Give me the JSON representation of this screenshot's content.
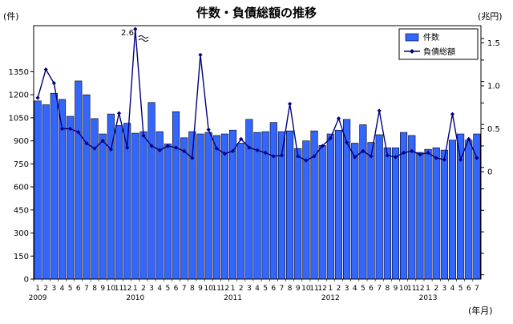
{
  "chart_data": {
    "type": "bar+line",
    "title": "件数・負債総額の推移",
    "left_axis_unit": "(件)",
    "right_axis_unit": "(兆円)",
    "x_axis_unit": "(年月)",
    "left_ylim": [
      0,
      1650
    ],
    "left_ticks": [
      "0",
      "150",
      "300",
      "450",
      "600",
      "750",
      "900",
      "1050",
      "1200",
      "1350"
    ],
    "right_ylim": [
      -1.25,
      1.7
    ],
    "right_ticks": [
      "0",
      "0.5",
      "1.0",
      "1.5"
    ],
    "x_month_labels": [
      "1",
      "2",
      "3",
      "4",
      "5",
      "6",
      "7",
      "8",
      "9",
      "10",
      "11",
      "12",
      "1",
      "2",
      "3",
      "4",
      "5",
      "6",
      "7",
      "8",
      "9",
      "10",
      "11",
      "12",
      "1",
      "2",
      "3",
      "4",
      "5",
      "6",
      "7",
      "8",
      "9",
      "10",
      "11",
      "12",
      "1",
      "2",
      "3",
      "4",
      "5",
      "6",
      "7",
      "8",
      "9",
      "10",
      "11",
      "12",
      "1",
      "2",
      "3",
      "4",
      "5",
      "6",
      "7"
    ],
    "x_year_labels": [
      {
        "label": "2009",
        "index": 0
      },
      {
        "label": "2010",
        "index": 12
      },
      {
        "label": "2011",
        "index": 24
      },
      {
        "label": "2012",
        "index": 36
      },
      {
        "label": "2013",
        "index": 48
      }
    ],
    "break_label": "2.6",
    "break_index": 13,
    "legend": {
      "position": "top-right"
    },
    "series": [
      {
        "name": "件数",
        "axis": "left",
        "color": "#3366ff",
        "values": [
          1160,
          1135,
          1210,
          1170,
          1060,
          1290,
          1200,
          1045,
          945,
          1075,
          1000,
          1015,
          950,
          960,
          1150,
          960,
          880,
          1090,
          920,
          960,
          945,
          955,
          935,
          945,
          970,
          885,
          1040,
          955,
          960,
          1020,
          960,
          965,
          850,
          900,
          965,
          870,
          945,
          970,
          1040,
          885,
          1005,
          890,
          940,
          855,
          855,
          955,
          935,
          825,
          845,
          855,
          840,
          905,
          945,
          905,
          945
        ]
      },
      {
        "name": "負債総額",
        "axis": "right",
        "color": "#000080",
        "values": [
          0.86,
          1.19,
          1.03,
          0.5,
          0.5,
          0.46,
          0.33,
          0.27,
          0.36,
          0.26,
          0.68,
          0.28,
          1.66,
          0.42,
          0.3,
          0.25,
          0.3,
          0.28,
          0.24,
          0.16,
          1.36,
          0.49,
          0.27,
          0.21,
          0.24,
          0.38,
          0.28,
          0.25,
          0.22,
          0.18,
          0.19,
          0.79,
          0.18,
          0.13,
          0.18,
          0.3,
          0.39,
          0.62,
          0.34,
          0.17,
          0.24,
          0.18,
          0.71,
          0.19,
          0.17,
          0.22,
          0.24,
          0.2,
          0.22,
          0.16,
          0.14,
          0.67,
          0.14,
          0.38,
          0.16
        ]
      }
    ]
  }
}
